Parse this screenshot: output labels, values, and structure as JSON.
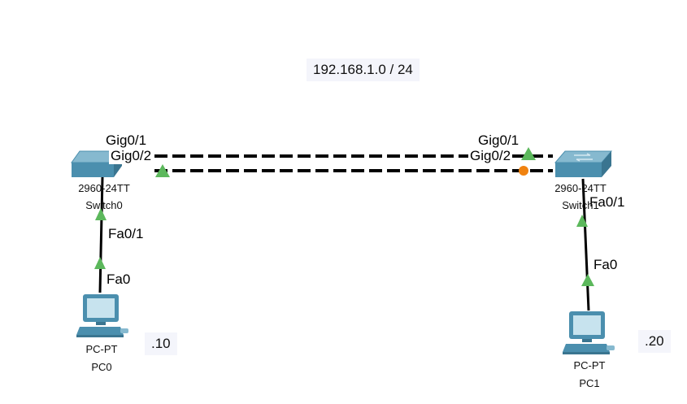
{
  "network_note": "192.168.1.0 / 24",
  "colors": {
    "link": "#000000",
    "port_up": "#5cb85c",
    "port_down": "#f0820f",
    "device": "#4b8fae"
  },
  "devices": {
    "switch0": {
      "model": "2960-24TT",
      "name": "Switch0"
    },
    "switch1": {
      "model": "2960-24TT",
      "name": "Switch1"
    },
    "pc0": {
      "model": "PC-PT",
      "name": "PC0",
      "ip_note": ".10"
    },
    "pc1": {
      "model": "PC-PT",
      "name": "PC1",
      "ip_note": ".20"
    }
  },
  "links": [
    {
      "from": "Switch0",
      "from_port": "Gig0/1",
      "to": "Switch1",
      "to_port": "Gig0/1",
      "style": "dashed",
      "from_status": "up",
      "to_status": "up"
    },
    {
      "from": "Switch0",
      "from_port": "Gig0/2",
      "to": "Switch1",
      "to_port": "Gig0/2",
      "style": "dashed",
      "from_status": "up",
      "to_status": "blocking"
    },
    {
      "from": "PC0",
      "from_port": "Fa0",
      "to": "Switch0",
      "to_port": "Fa0/1",
      "style": "solid",
      "from_status": "up",
      "to_status": "up"
    },
    {
      "from": "PC1",
      "from_port": "Fa0",
      "to": "Switch1",
      "to_port": "Fa0/1",
      "style": "solid",
      "from_status": "up",
      "to_status": "up"
    }
  ]
}
